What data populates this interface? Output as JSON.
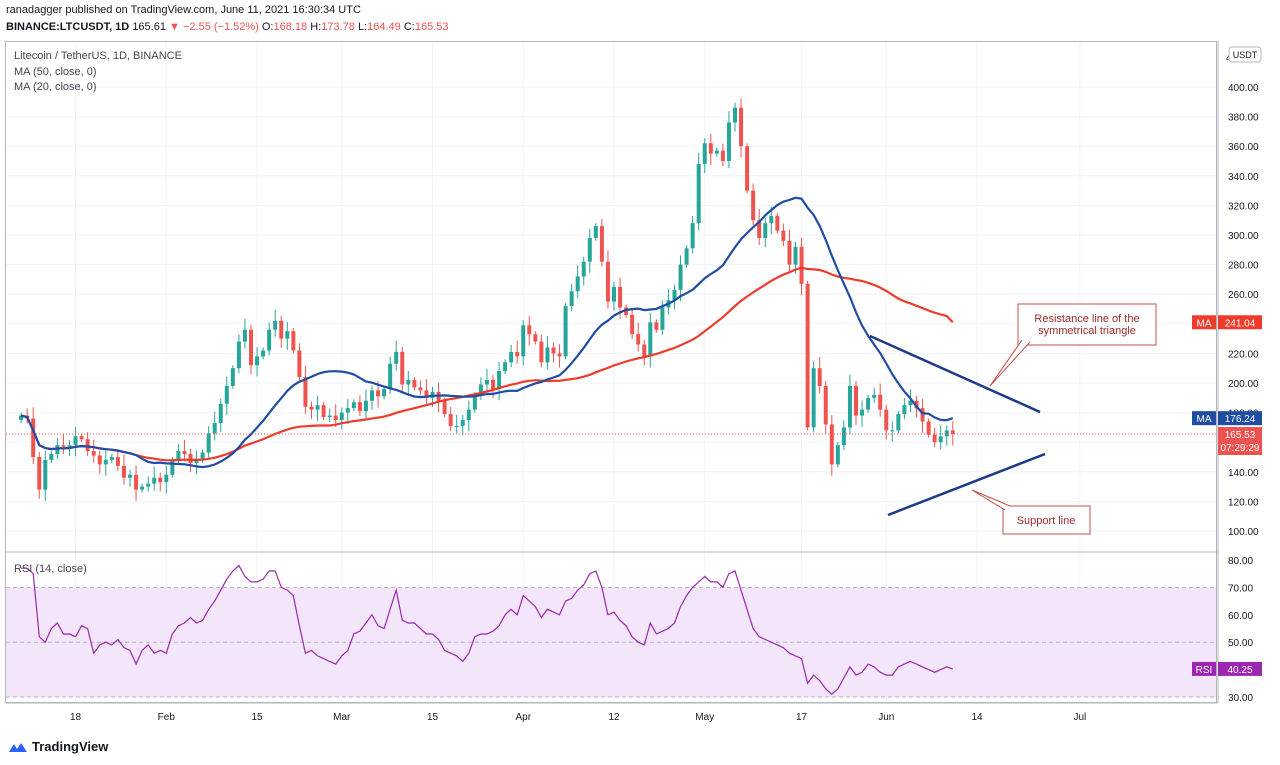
{
  "header": {
    "published": "ranadagger published on TradingView.com, June 11, 2021 16:30:34 UTC",
    "symbol": "BINANCE:LTCUSDT, 1D",
    "last": "165.61",
    "change": "▼ −2.55 (−1.52%)",
    "o_label": "O:",
    "o_value": "168.18",
    "h_label": "H:",
    "h_value": "173.78",
    "l_label": "L:",
    "l_value": "164.49",
    "c_label": "C:",
    "c_value": "165.53"
  },
  "legend": {
    "title": "Litecoin / TetherUS, 1D, BINANCE",
    "ma50": "MA (50, close, 0)",
    "ma20": "MA (20, close, 0)",
    "rsi": "RSI (14, close)"
  },
  "price_axis": {
    "currency": "USDT",
    "ticks": [
      "400.00",
      "380.00",
      "360.00",
      "340.00",
      "320.00",
      "300.00",
      "280.00",
      "260.00",
      "240.00",
      "220.00",
      "200.00",
      "180.00",
      "160.00",
      "140.00",
      "120.00",
      "100.00"
    ],
    "top_partial": "4"
  },
  "badges": {
    "ma50_label": "MA",
    "ma50_value": "241.04",
    "ma20_label": "MA",
    "ma20_value": "176.24",
    "price_value": "165.53",
    "countdown": "07:29:29",
    "rsi_label": "RSI",
    "rsi_value": "40.25"
  },
  "rsi_axis": {
    "ticks": [
      "80.00",
      "70.00",
      "60.00",
      "50.00",
      "40.00",
      "30.00"
    ]
  },
  "time_axis": {
    "ticks": [
      "18",
      "Feb",
      "15",
      "Mar",
      "15",
      "Apr",
      "12",
      "May",
      "17",
      "Jun",
      "14",
      "Jul"
    ]
  },
  "annotations": {
    "resistance": [
      "Resistance line of the",
      "symmetrical triangle"
    ],
    "support": "Support line"
  },
  "footer": {
    "brand": "TradingView"
  },
  "colors": {
    "up": "#26a69a",
    "down": "#ef5350",
    "ma20": "#1e4da3",
    "ma50": "#ef3b2c",
    "rsi": "#9c27b0",
    "rsi_band": "#f3e5fa",
    "trendline": "#1e3a8a",
    "callout": "#c0504d"
  },
  "chart_data": [
    {
      "type": "candlestick",
      "title": "Litecoin / TetherUS, 1D, BINANCE",
      "ylabel": "USDT",
      "ylim": [
        90,
        415
      ],
      "grid": true,
      "x_ticks": [
        "18",
        "Feb",
        "15",
        "Mar",
        "15",
        "Apr",
        "12",
        "May",
        "17",
        "Jun",
        "14",
        "Jul"
      ],
      "ohlc_close": [
        178,
        176,
        150,
        128,
        148,
        152,
        158,
        157,
        158,
        164,
        162,
        154,
        151,
        145,
        148,
        150,
        144,
        136,
        138,
        128,
        130,
        132,
        136,
        133,
        138,
        148,
        154,
        152,
        146,
        148,
        153,
        166,
        173,
        186,
        198,
        210,
        228,
        236,
        212,
        218,
        222,
        236,
        242,
        230,
        235,
        222,
        204,
        184,
        182,
        185,
        177,
        178,
        175,
        180,
        183,
        187,
        181,
        188,
        195,
        191,
        196,
        213,
        221,
        199,
        202,
        197,
        195,
        190,
        194,
        188,
        179,
        171,
        171,
        175,
        182,
        192,
        199,
        202,
        196,
        208,
        214,
        221,
        218,
        239,
        233,
        228,
        214,
        224,
        220,
        218,
        252,
        262,
        272,
        282,
        298,
        306,
        282,
        255,
        265,
        251,
        246,
        233,
        226,
        218,
        241,
        236,
        251,
        256,
        263,
        280,
        291,
        308,
        348,
        362,
        355,
        357,
        350,
        376,
        386,
        360,
        330,
        310,
        298,
        308,
        313,
        303,
        296,
        280,
        292,
        267,
        170,
        210,
        198,
        172,
        145,
        158,
        170,
        198,
        178,
        182,
        190,
        192,
        182,
        168,
        168,
        179,
        185,
        188,
        183,
        174,
        165,
        160,
        164,
        168,
        165.53
      ],
      "series": [
        {
          "name": "MA (20, close, 0)",
          "last": 176.24
        },
        {
          "name": "MA (50, close, 0)",
          "last": 241.04
        }
      ],
      "price_last": 165.53
    },
    {
      "type": "line",
      "title": "RSI (14, close)",
      "ylim": [
        27,
        82
      ],
      "bands": [
        30,
        70
      ],
      "values": [
        77,
        77,
        75,
        52,
        50,
        55,
        57,
        53,
        53,
        52,
        56,
        55,
        46,
        49,
        50,
        49,
        51,
        48,
        47,
        42,
        47,
        49,
        46,
        47,
        46,
        53,
        56,
        57,
        59,
        57,
        58,
        62,
        65,
        69,
        73,
        76,
        78,
        74,
        72,
        72,
        73,
        76,
        76,
        70,
        69,
        67,
        56,
        46,
        47,
        45,
        44,
        43,
        42,
        45,
        47,
        53,
        54,
        57,
        60,
        56,
        55,
        62,
        69,
        58,
        57,
        57,
        55,
        53,
        53,
        51,
        47,
        46,
        45,
        43,
        46,
        52,
        53,
        53,
        54,
        56,
        60,
        62,
        60,
        67,
        65,
        63,
        59,
        62,
        61,
        60,
        65,
        66,
        69,
        71,
        75,
        76,
        70,
        60,
        61,
        58,
        56,
        52,
        50,
        49,
        57,
        53,
        54,
        55,
        57,
        63,
        67,
        70,
        72,
        74,
        72,
        72,
        70,
        75,
        76,
        69,
        62,
        55,
        52,
        51,
        50,
        49,
        48,
        46,
        45,
        44,
        35,
        38,
        36,
        33,
        31,
        33,
        37,
        41,
        38,
        39,
        42,
        41,
        39,
        38,
        38,
        41,
        42,
        43,
        42,
        41,
        40,
        39,
        40,
        41,
        40.25
      ],
      "last": 40.25
    }
  ]
}
